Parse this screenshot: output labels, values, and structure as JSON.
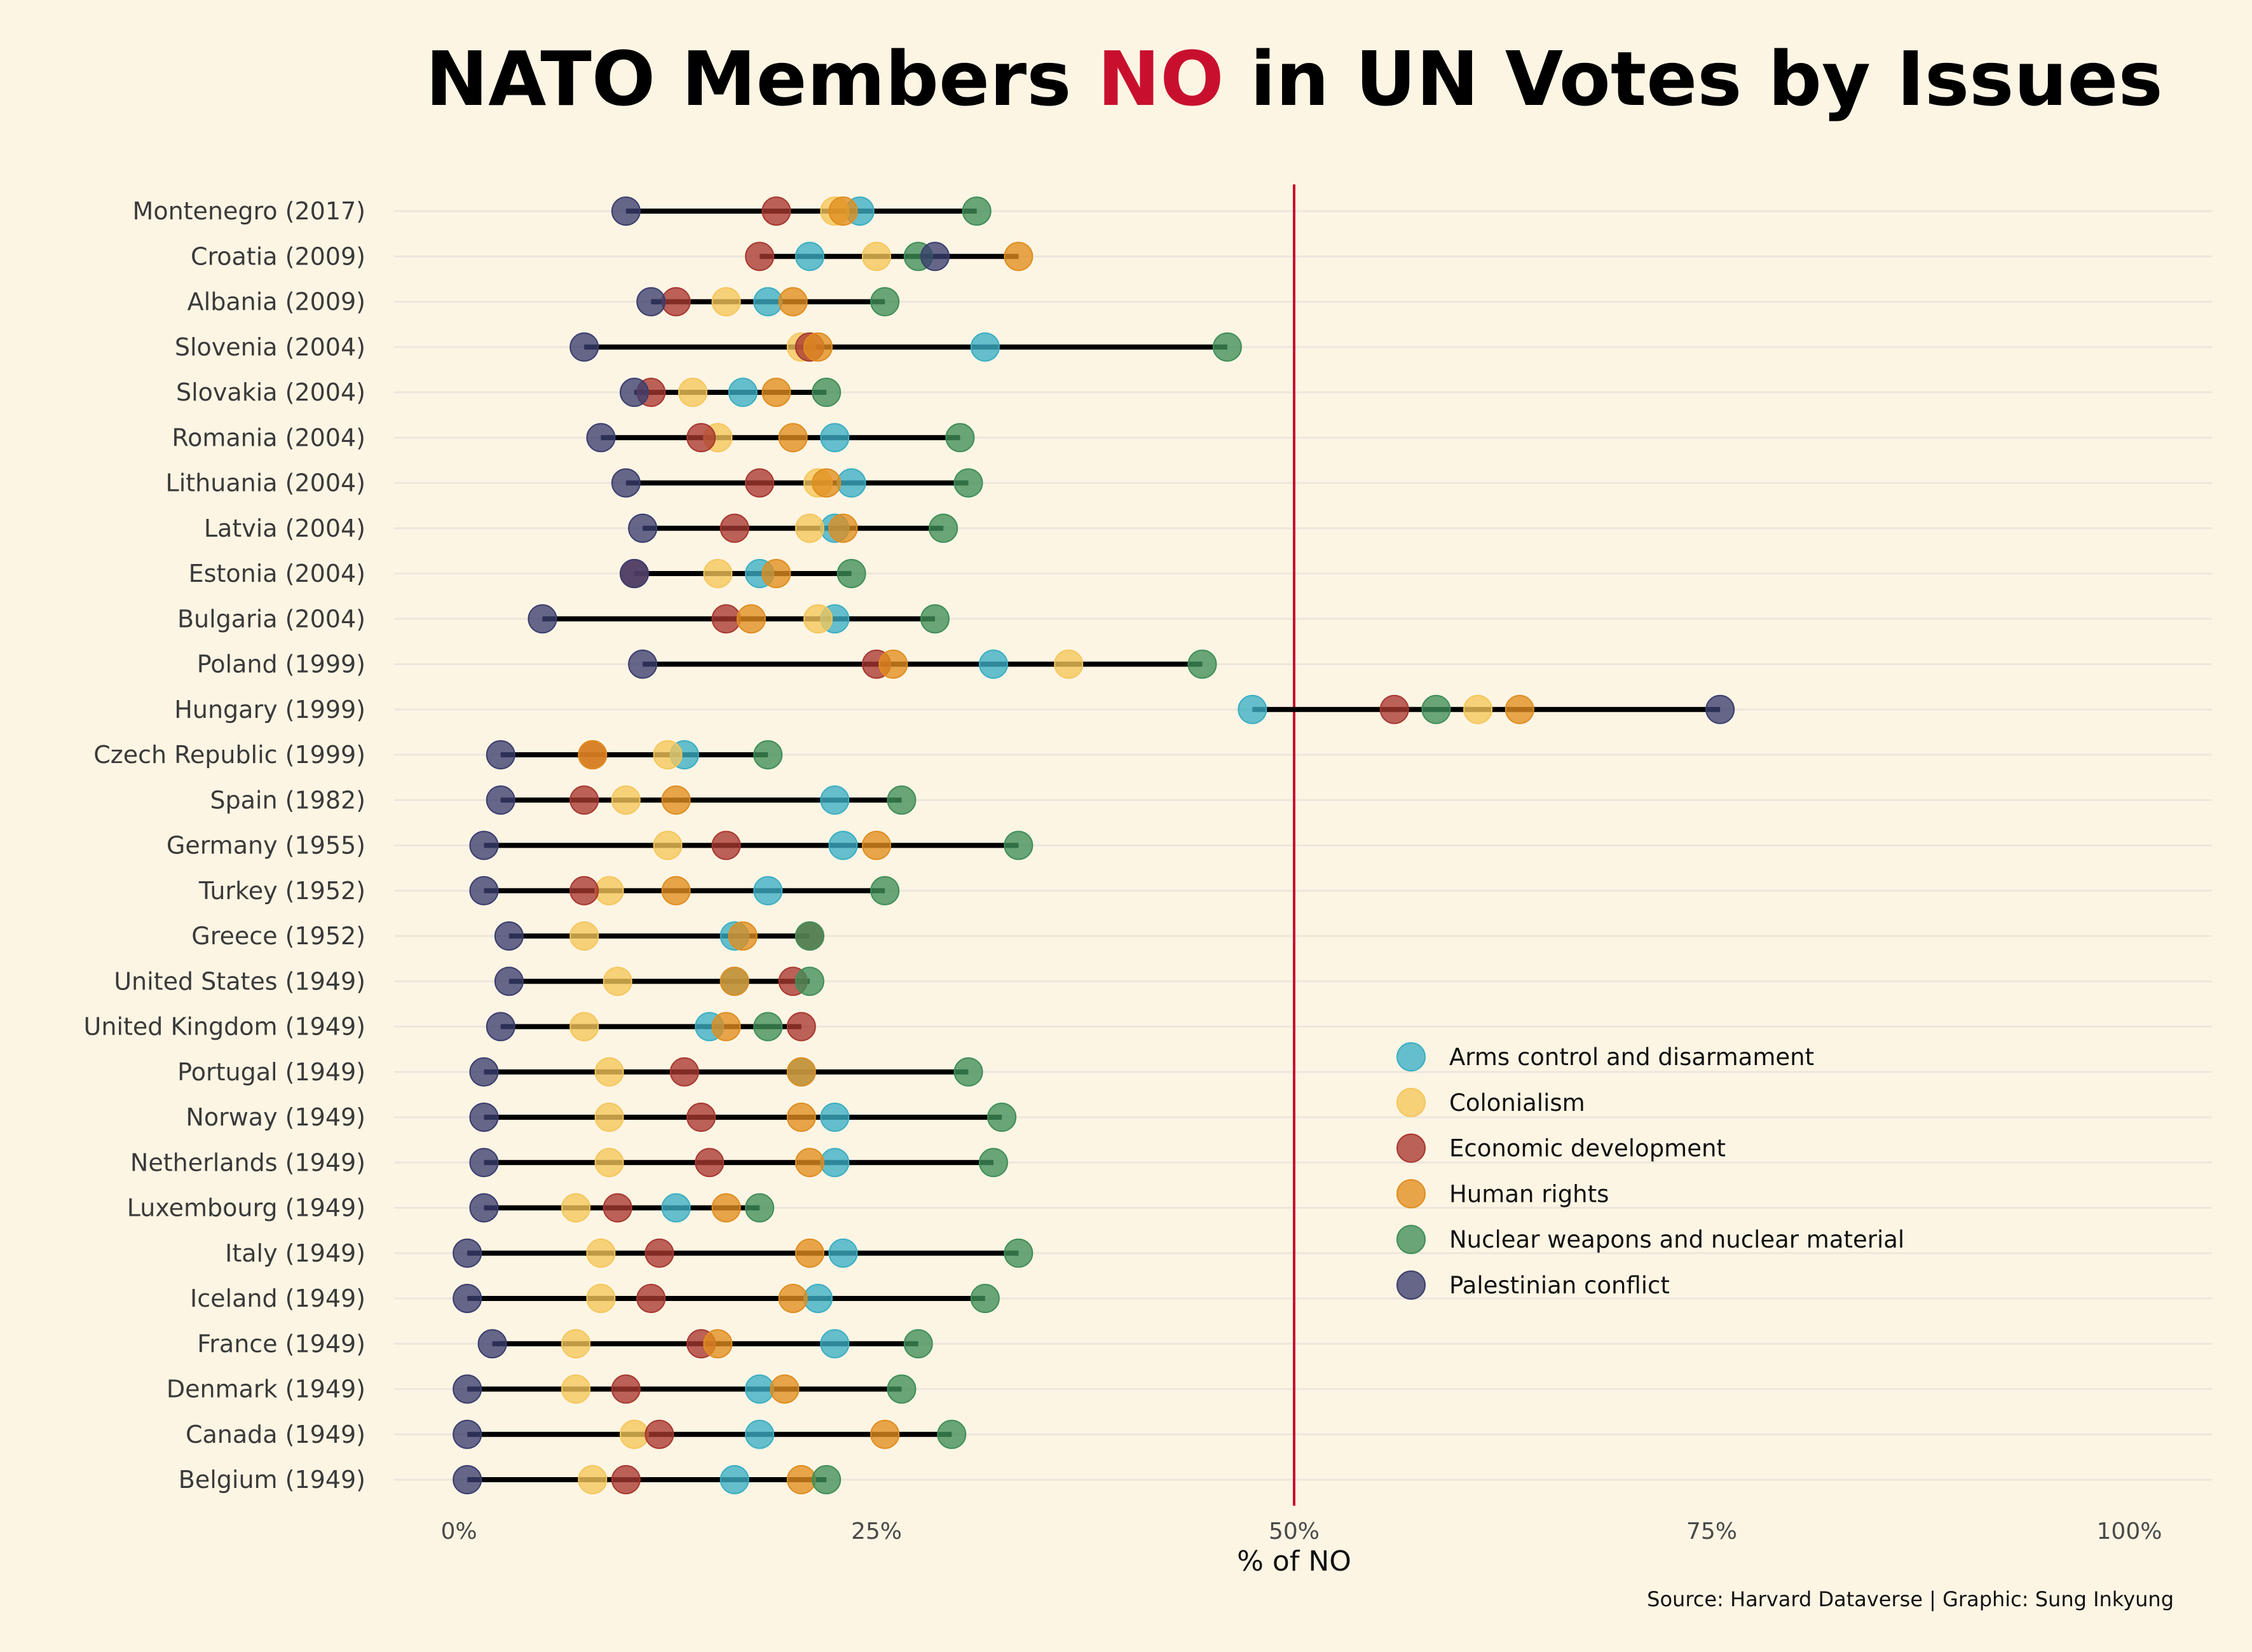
{
  "chart_data": {
    "type": "scatter",
    "title": {
      "prefix": "NATO Members ",
      "highlight": "NO",
      "suffix": " in UN Votes by Issues"
    },
    "xlabel": "% of NO",
    "xlim": [
      0,
      100
    ],
    "x_ticks": [
      "0%",
      "25%",
      "50%",
      "75%",
      "100%"
    ],
    "reference_line": 50,
    "legend_position": "right",
    "source": "Source: Harvard Dataverse | Graphic: Sung Inkyung",
    "colors": {
      "title_highlight": "#c8102e",
      "reference_line": "#c8102e",
      "range_line": "#000000",
      "background": "#fdf5e4"
    },
    "series": [
      {
        "name": "Arms control and disarmament",
        "color": "#3aaec4"
      },
      {
        "name": "Colonialism",
        "color": "#f5c65a"
      },
      {
        "name": "Economic development",
        "color": "#a8372f"
      },
      {
        "name": "Human rights",
        "color": "#e08d1e"
      },
      {
        "name": "Nuclear weapons and nuclear material",
        "color": "#3f8e57"
      },
      {
        "name": "Palestinian conflict",
        "color": "#3a3d6e"
      }
    ],
    "categories": [
      "Montenegro (2017)",
      "Croatia (2009)",
      "Albania (2009)",
      "Slovenia (2004)",
      "Slovakia (2004)",
      "Romania (2004)",
      "Lithuania (2004)",
      "Latvia (2004)",
      "Estonia (2004)",
      "Bulgaria (2004)",
      "Poland (1999)",
      "Hungary (1999)",
      "Czech Republic (1999)",
      "Spain (1982)",
      "Germany (1955)",
      "Turkey (1952)",
      "Greece (1952)",
      "United States (1949)",
      "United Kingdom (1949)",
      "Portugal (1949)",
      "Norway (1949)",
      "Netherlands (1949)",
      "Luxembourg (1949)",
      "Italy (1949)",
      "Iceland (1949)",
      "France (1949)",
      "Denmark (1949)",
      "Canada (1949)",
      "Belgium (1949)"
    ],
    "values": [
      [
        24,
        22.5,
        19,
        23,
        31,
        10
      ],
      [
        21,
        25,
        18,
        33.5,
        27.5,
        28.5
      ],
      [
        18.5,
        16,
        13,
        20,
        25.5,
        11.5
      ],
      [
        31.5,
        20.5,
        21,
        21.5,
        46,
        7.5
      ],
      [
        17,
        14,
        11.5,
        19,
        22,
        10.5
      ],
      [
        22.5,
        15.5,
        14.5,
        20,
        30,
        8.5
      ],
      [
        23.5,
        21.5,
        18,
        22,
        30.5,
        10
      ],
      [
        22.5,
        21,
        16.5,
        23,
        29,
        11
      ],
      [
        18,
        15.5,
        10.5,
        19,
        23.5,
        10.5
      ],
      [
        22.5,
        21.5,
        16,
        17.5,
        28.5,
        5
      ],
      [
        32,
        36.5,
        25,
        26,
        44.5,
        11
      ],
      [
        47.5,
        61,
        56,
        63.5,
        58.5,
        75.5
      ],
      [
        13.5,
        12.5,
        8,
        8,
        18.5,
        2.5
      ],
      [
        22.5,
        10,
        7.5,
        13,
        26.5,
        2.5
      ],
      [
        23,
        12.5,
        16,
        25,
        33.5,
        1.5
      ],
      [
        18.5,
        9,
        7.5,
        13,
        25.5,
        1.5
      ],
      [
        16.5,
        7.5,
        21,
        17,
        21,
        3
      ],
      [
        16.5,
        9.5,
        20,
        16.5,
        21,
        3
      ],
      [
        15,
        7.5,
        20.5,
        16,
        18.5,
        2.5
      ],
      [
        20.5,
        9,
        13.5,
        20.5,
        30.5,
        1.5
      ],
      [
        22.5,
        9,
        14.5,
        20.5,
        32.5,
        1.5
      ],
      [
        22.5,
        9,
        15,
        21,
        32,
        1.5
      ],
      [
        13,
        7,
        9.5,
        16,
        18,
        1.5
      ],
      [
        23,
        8.5,
        12,
        21,
        33.5,
        0.5
      ],
      [
        21.5,
        8.5,
        11.5,
        20,
        31.5,
        0.5
      ],
      [
        22.5,
        7,
        14.5,
        15.5,
        27.5,
        2
      ],
      [
        18,
        7,
        10,
        19.5,
        26.5,
        0.5
      ],
      [
        18,
        10.5,
        12,
        25.5,
        29.5,
        0.5
      ],
      [
        16.5,
        8,
        10,
        20.5,
        22,
        0.5
      ]
    ]
  }
}
